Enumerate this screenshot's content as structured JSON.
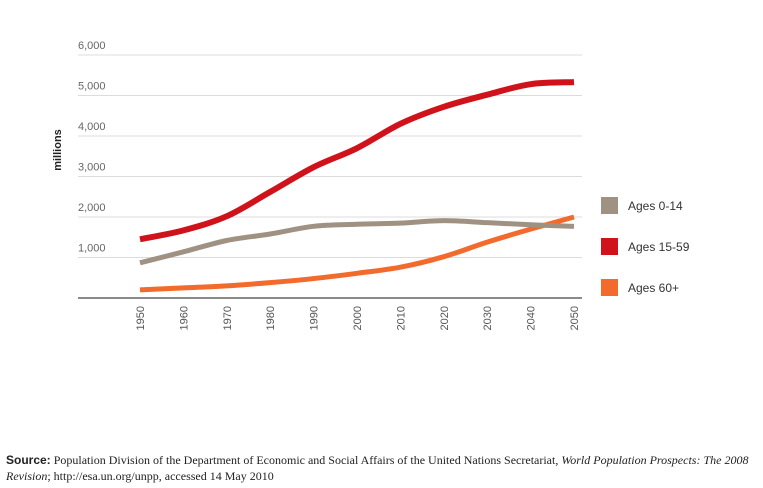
{
  "chart_data": {
    "type": "line",
    "ylabel": "millions",
    "xlabel": "",
    "ylim": [
      0,
      6000
    ],
    "yticks": [
      0,
      1000,
      2000,
      3000,
      4000,
      5000,
      6000
    ],
    "ytick_labels": [
      "",
      "1,000",
      "2,000",
      "3,000",
      "4,000",
      "5,000",
      "6,000"
    ],
    "x": [
      1950,
      1960,
      1970,
      1980,
      1990,
      2000,
      2010,
      2020,
      2030,
      2040,
      2050
    ],
    "xtick_labels": [
      "1950",
      "1960",
      "1970",
      "1980",
      "1990",
      "2000",
      "2010",
      "2020",
      "2030",
      "2040",
      "2050"
    ],
    "grid": "horizontal",
    "legend_placement": "right",
    "series": [
      {
        "name": "Ages 0-14",
        "color": "#a09282",
        "values": [
          870,
          1140,
          1420,
          1580,
          1770,
          1820,
          1850,
          1910,
          1860,
          1810,
          1770
        ]
      },
      {
        "name": "Ages 15-59",
        "color": "#d0121b",
        "values": [
          1450,
          1670,
          2020,
          2620,
          3230,
          3700,
          4300,
          4720,
          5020,
          5280,
          5330
        ]
      },
      {
        "name": "Ages 60+",
        "color": "#f26a2c",
        "values": [
          200,
          250,
          300,
          380,
          480,
          610,
          760,
          1020,
          1380,
          1700,
          2000
        ]
      }
    ]
  },
  "source": {
    "label": "Source:",
    "text_1": " Population Division of the Department of Economic and Social Affairs of the United Nations Secretariat, ",
    "title": "World Population Prospects: The 2008 Revision",
    "text_2": "; http://esa.un.org/unpp, accessed 14 May 2010"
  }
}
